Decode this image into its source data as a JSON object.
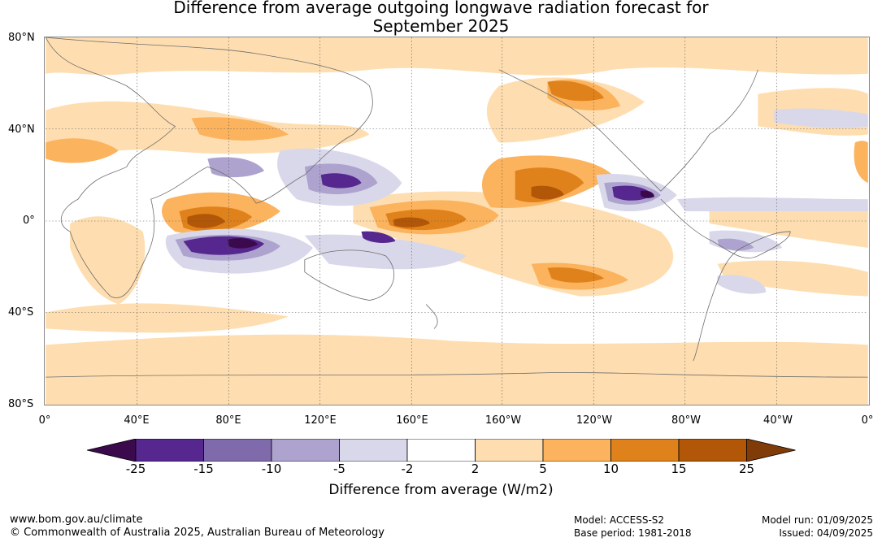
{
  "title_line1": "Difference from average outgoing longwave radiation forecast for",
  "title_line2": "September 2025",
  "lat_labels": [
    "80°N",
    "40°N",
    "0°",
    "40°S",
    "80°S"
  ],
  "lon_labels": [
    "0°",
    "40°E",
    "80°E",
    "120°E",
    "160°E",
    "160°W",
    "120°W",
    "80°W",
    "40°W",
    "0°"
  ],
  "colorbar": {
    "label": "Difference from average (W/m2)",
    "ticks": [
      "-25",
      "-15",
      "-10",
      "-5",
      "-2",
      "2",
      "5",
      "10",
      "15",
      "25"
    ],
    "colors": [
      "#3b0a4d",
      "#56278e",
      "#7f6bab",
      "#ada3ce",
      "#d9d8ea",
      "#ffffff",
      "#fedeb0",
      "#fcb35e",
      "#e0821b",
      "#b15707",
      "#7f3b08"
    ]
  },
  "footer": {
    "url": "www.bom.gov.au/climate",
    "copyright": "© Commonwealth of Australia 2025, Australian Bureau of Meteorology",
    "model": "Model: ACCESS-S2",
    "base_period": "Base period: 1981-2018",
    "model_run": "Model run: 01/09/2025",
    "issued": "Issued: 04/09/2025"
  }
}
